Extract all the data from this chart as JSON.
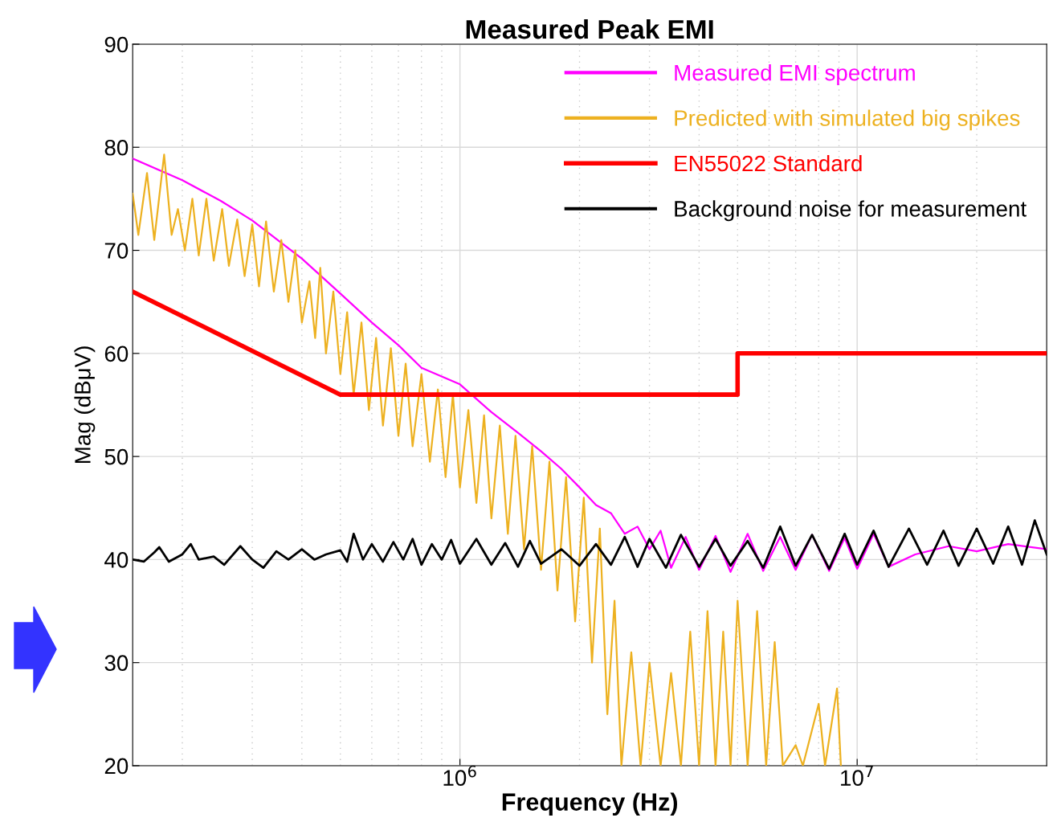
{
  "chart_data": {
    "type": "line",
    "title": "Measured Peak EMI",
    "xlabel": "Frequency (Hz)",
    "ylabel": "Mag (dBμV)",
    "log": "x",
    "xlim": [
      150000,
      30000000
    ],
    "xticks": [
      {
        "value": 1000000,
        "label": "10$^{6}$"
      },
      {
        "value": 10000000,
        "label": "10$^{7}$"
      }
    ],
    "ylim": [
      20,
      90
    ],
    "yticks": [
      20,
      30,
      40,
      50,
      60,
      70,
      80,
      90
    ],
    "grid": true,
    "legend": "top right",
    "line_style": "solid",
    "marker": "none",
    "series": [
      {
        "name": "Measured EMI spectrum",
        "color": "#ff00ff",
        "x": [
          150000,
          200000,
          250000,
          300000,
          400000,
          500000,
          600000,
          700000,
          800000,
          1000000,
          1200000,
          1400000,
          1600000,
          1800000,
          2000000,
          2200000,
          2400000,
          2600000,
          2800000,
          3000000,
          3200000,
          3400000,
          3700000,
          4000000,
          4400000,
          4800000,
          5300000,
          5800000,
          6400000,
          7000000,
          7700000,
          8500000,
          9300000,
          10000000,
          11000000,
          12000000,
          14000000,
          17000000,
          20000000,
          24000000,
          30000000
        ],
        "values": [
          78.9,
          76.8,
          74.8,
          72.9,
          69.2,
          65.8,
          63,
          60.8,
          58.6,
          57,
          54.3,
          52.3,
          50.5,
          48.8,
          47,
          45.3,
          44.5,
          42.5,
          43.2,
          41,
          42.8,
          39.2,
          42.2,
          39,
          42.3,
          38.8,
          42.5,
          38.9,
          42.2,
          39,
          42.4,
          38.9,
          42.1,
          39.1,
          42.5,
          39.3,
          40.5,
          41.3,
          40.8,
          41.5,
          41
        ]
      },
      {
        "name": "Predicted with simulated big spikes",
        "color": "#edb120",
        "x": [
          150000,
          155000,
          163000,
          170000,
          180000,
          188000,
          195000,
          203000,
          212000,
          220000,
          230000,
          240000,
          252000,
          262000,
          275000,
          287000,
          300000,
          312000,
          325000,
          340000,
          355000,
          370000,
          385000,
          400000,
          418000,
          432000,
          445000,
          460000,
          480000,
          500000,
          520000,
          540000,
          565000,
          590000,
          615000,
          640000,
          670000,
          700000,
          730000,
          760000,
          800000,
          840000,
          880000,
          920000,
          960000,
          1000000,
          1050000,
          1100000,
          1150000,
          1200000,
          1260000,
          1320000,
          1380000,
          1450000,
          1520000,
          1600000,
          1680000,
          1760000,
          1850000,
          1950000,
          2050000,
          2150000,
          2250000,
          2350000,
          2450000,
          2550000,
          2700000,
          2850000,
          3000000,
          3200000,
          3400000,
          3600000,
          3800000,
          4000000,
          4200000,
          4400000,
          4600000,
          4800000,
          5000000,
          5300000,
          5600000,
          5900000,
          6200000,
          6500000,
          7000000,
          7300000,
          8000000,
          8300000,
          8900000,
          9100000
        ],
        "values": [
          75.5,
          71.5,
          77.5,
          71,
          79.3,
          71.5,
          74,
          70,
          75,
          69.5,
          75,
          69,
          74,
          68.5,
          73,
          67.5,
          72.5,
          66.5,
          72.8,
          66,
          71,
          65,
          70,
          63,
          67,
          61.5,
          68.3,
          60,
          66,
          58,
          64,
          56,
          63,
          54.5,
          61.5,
          53,
          60.5,
          52,
          59,
          51,
          58,
          49.5,
          56.5,
          48,
          56,
          47,
          54.5,
          45.5,
          54,
          44,
          53,
          42.5,
          52,
          41,
          51,
          39,
          49.5,
          37,
          48,
          34,
          46,
          30,
          43,
          25,
          36,
          20,
          31,
          20,
          30,
          20,
          29,
          20,
          33,
          20,
          35,
          20,
          33,
          20,
          36,
          20,
          35,
          20,
          32,
          20,
          22,
          20,
          26,
          20,
          27.5,
          20
        ]
      },
      {
        "name": "EN55022 Standard",
        "color": "#ff0000",
        "x": [
          150000,
          500000,
          5000000,
          5000000,
          30000000
        ],
        "values": [
          66,
          56,
          56,
          60,
          60
        ]
      },
      {
        "name": "Background noise for measurement",
        "color": "#000000",
        "x": [
          150000,
          160000,
          170000,
          175000,
          185000,
          200000,
          210000,
          220000,
          240000,
          255000,
          280000,
          300000,
          320000,
          345000,
          370000,
          400000,
          430000,
          460000,
          500000,
          520000,
          540000,
          570000,
          600000,
          640000,
          680000,
          720000,
          760000,
          800000,
          850000,
          900000,
          950000,
          1000000,
          1100000,
          1200000,
          1300000,
          1400000,
          1500000,
          1600000,
          1800000,
          2000000,
          2200000,
          2400000,
          2600000,
          2800000,
          3000000,
          3300000,
          3600000,
          4000000,
          4400000,
          4800000,
          5300000,
          5800000,
          6400000,
          7000000,
          7700000,
          8500000,
          9300000,
          10000000,
          11000000,
          12000000,
          13500000,
          15000000,
          16500000,
          18000000,
          20000000,
          22000000,
          24000000,
          26000000,
          28000000,
          30000000
        ],
        "values": [
          40,
          39.8,
          40.7,
          41.2,
          39.8,
          40.5,
          41.5,
          40,
          40.3,
          39.5,
          41.3,
          40,
          39.2,
          40.8,
          40,
          41,
          40,
          40.5,
          40.9,
          39.8,
          42.5,
          40,
          41.5,
          39.8,
          41.7,
          40,
          42,
          39.5,
          41.5,
          40,
          41.9,
          39.6,
          42,
          39.5,
          41.6,
          39.3,
          41.8,
          39.6,
          41,
          39.4,
          41.5,
          39.5,
          42.2,
          39.3,
          42,
          39.2,
          42.4,
          39.3,
          42,
          39.4,
          41.8,
          39.2,
          43.2,
          39.4,
          42.4,
          39.1,
          42.5,
          39.5,
          42.8,
          39.3,
          43,
          39.5,
          42.8,
          39.4,
          43,
          39.6,
          43.2,
          39.5,
          43.8,
          40.5
        ]
      }
    ]
  }
}
